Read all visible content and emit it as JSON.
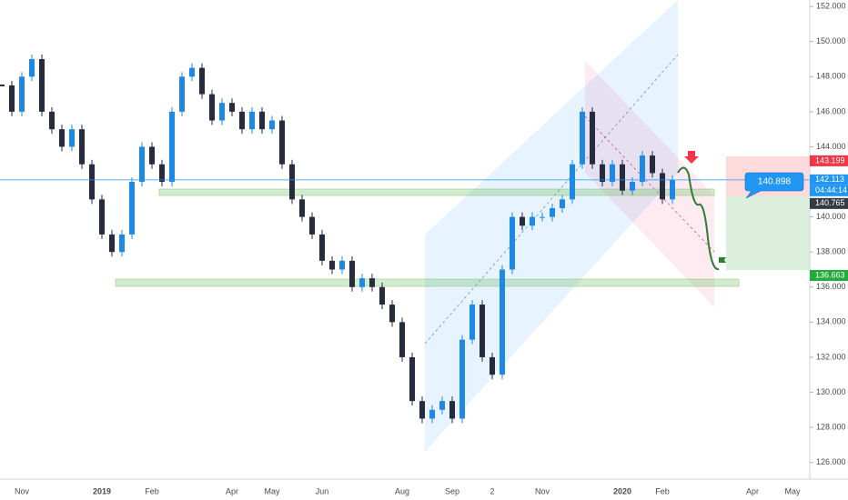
{
  "chart_data": {
    "type": "candlestick",
    "categories": [
      null,
      null,
      "Nov",
      null,
      null,
      null,
      null,
      null,
      null,
      null,
      "2019",
      null,
      null,
      null,
      null,
      "Feb",
      null,
      null,
      null,
      null,
      null,
      null,
      null,
      "Apr",
      null,
      null,
      null,
      "May",
      null,
      null,
      null,
      null,
      "Jun",
      null,
      null,
      null,
      null,
      null,
      null,
      null,
      "Aug",
      null,
      null,
      null,
      null,
      "Sep",
      null,
      null,
      null,
      "2",
      null,
      null,
      null,
      null,
      "Nov",
      null,
      null,
      null,
      null,
      null,
      null,
      null,
      "2020",
      null,
      null,
      null,
      "Feb",
      null,
      null,
      null,
      null,
      null,
      null,
      null,
      null,
      "Apr",
      null,
      null,
      null,
      "May"
    ],
    "values": [
      147.5,
      146,
      148,
      149,
      146,
      145,
      144,
      145,
      143,
      141,
      139,
      138,
      139,
      142,
      144,
      143,
      142,
      146,
      148,
      148.5,
      147,
      145.5,
      146.5,
      146,
      145,
      146,
      145,
      145.5,
      143,
      141,
      140,
      139,
      137.5,
      137,
      137.5,
      136,
      136.5,
      136,
      135,
      134,
      132,
      129.5,
      128.5,
      129,
      129.5,
      128.5,
      133,
      135,
      132,
      131,
      137,
      140,
      139.5,
      140,
      140,
      140.5,
      141,
      143,
      146,
      143,
      142,
      143,
      141.5,
      142,
      143.5,
      142.5,
      141,
      142.113,
      null,
      null,
      null,
      null,
      null,
      null,
      null,
      null,
      null,
      null,
      null,
      null
    ],
    "up_color": "#1e88e5",
    "down_color": "#262b3e",
    "ylim": [
      125.05,
      152.37
    ],
    "yticks": [
      {
        "value": 152,
        "label": "152.000"
      },
      {
        "value": 150,
        "label": "150.000"
      },
      {
        "value": 148,
        "label": "148.000"
      },
      {
        "value": 146,
        "label": "146.000"
      },
      {
        "value": 144,
        "label": "144.000"
      },
      {
        "value": 142,
        "label": "142.000"
      },
      {
        "value": 140,
        "label": "140.000"
      },
      {
        "value": 138,
        "label": "138.000"
      },
      {
        "value": 136,
        "label": "136.000"
      },
      {
        "value": 134,
        "label": "134.000"
      },
      {
        "value": 132,
        "label": "132.000"
      },
      {
        "value": 130,
        "label": "130.000"
      },
      {
        "value": 128,
        "label": "128.000"
      },
      {
        "value": 126,
        "label": "126.000"
      }
    ],
    "price_tags": [
      {
        "value": 143.199,
        "color": "#f23645"
      },
      {
        "value": 142.113,
        "color": "#2196f3"
      },
      {
        "value": 140.765,
        "color": "#363a45"
      },
      {
        "value": 136.663,
        "color": "#22ab3a"
      }
    ],
    "countdown": "04:44:14",
    "callout": "140.898"
  }
}
